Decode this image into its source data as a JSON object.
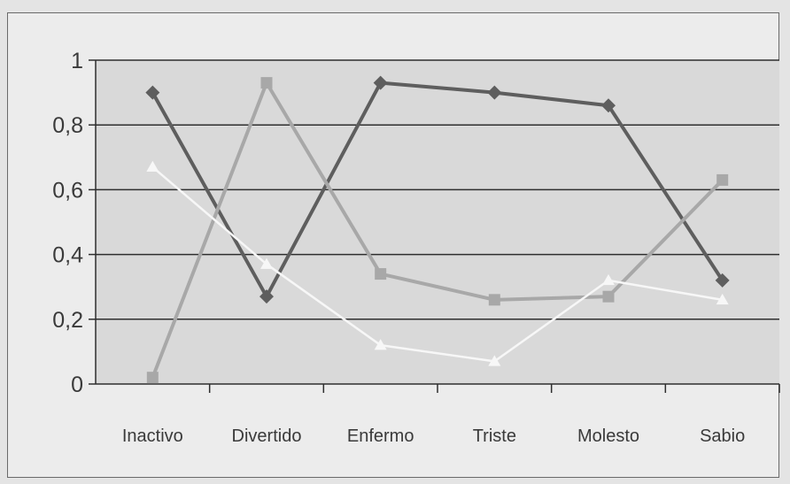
{
  "chart_data": {
    "type": "line",
    "categories": [
      "Inactivo",
      "Divertido",
      "Enfermo",
      "Triste",
      "Molesto",
      "Sabio"
    ],
    "y_ticks": [
      "0",
      "0,2",
      "0,4",
      "0,6",
      "0,8",
      "1"
    ],
    "ylim": [
      0,
      1
    ],
    "grid": true,
    "legend": "none",
    "series": [
      {
        "color": "#5e5e5e",
        "marker": "diamond",
        "values": [
          0.9,
          0.27,
          0.93,
          0.9,
          0.86,
          0.32
        ]
      },
      {
        "color": "#a8a8a8",
        "marker": "square",
        "values": [
          0.02,
          0.93,
          0.34,
          0.26,
          0.27,
          0.63
        ]
      },
      {
        "color": "#f7f7f7",
        "marker": "triangle",
        "values": [
          0.67,
          0.37,
          0.12,
          0.07,
          0.32,
          0.26
        ]
      }
    ]
  }
}
